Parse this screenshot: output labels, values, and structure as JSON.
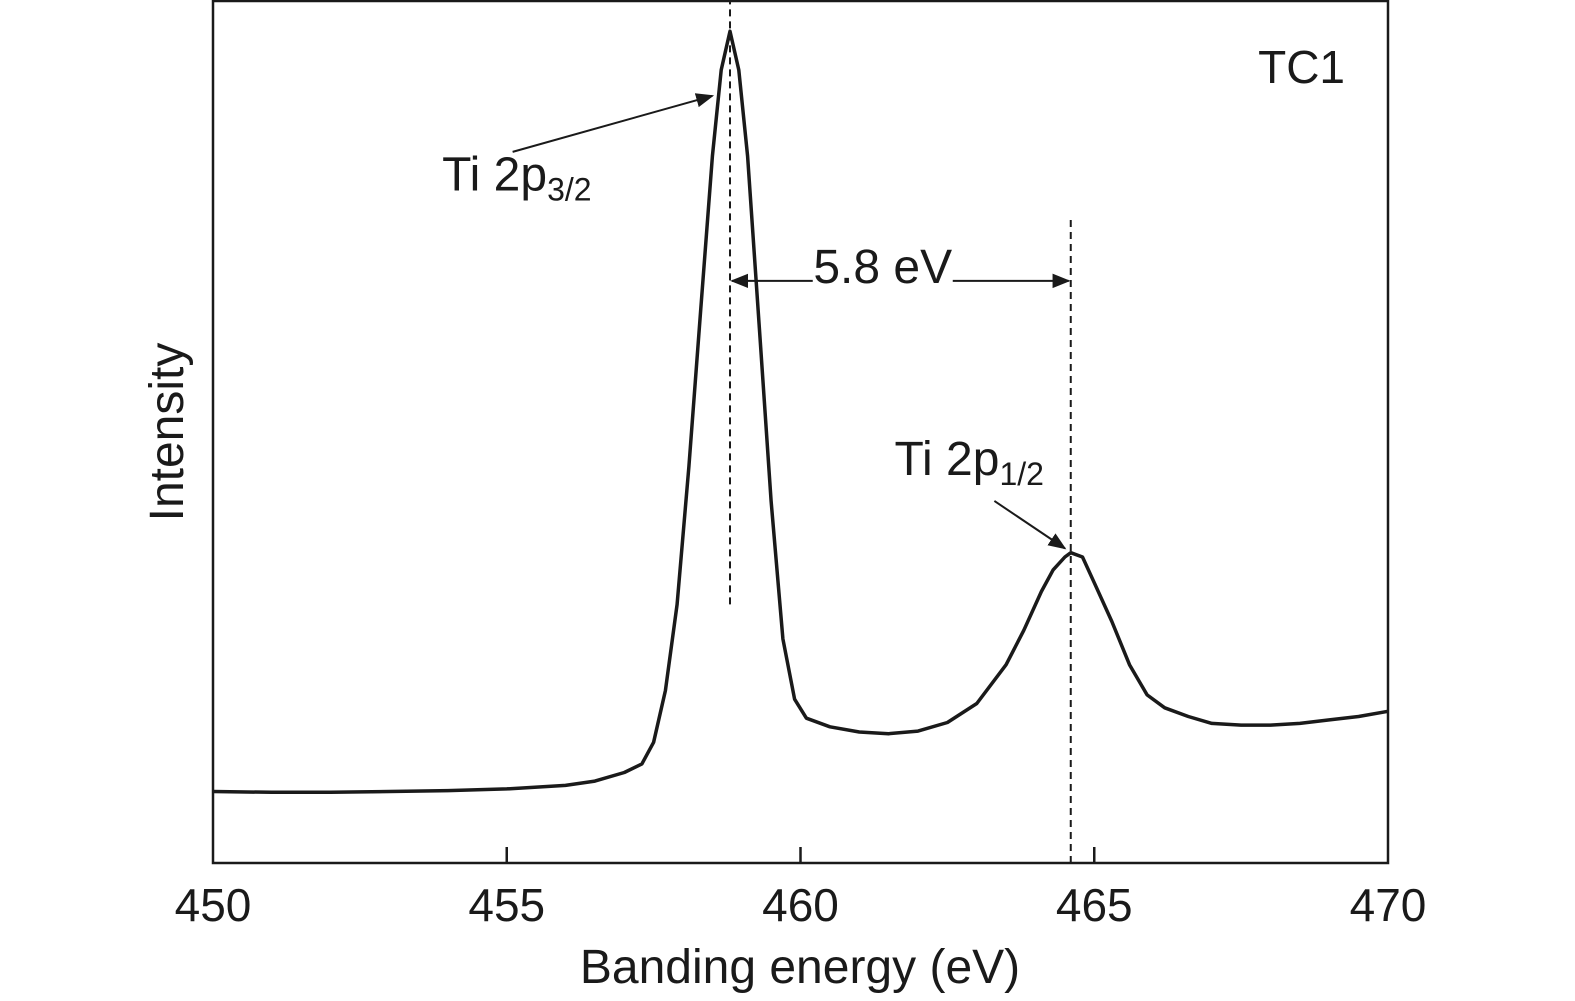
{
  "chart_data": {
    "type": "line",
    "title": "",
    "sample_label": "TC1",
    "xlabel": "Banding energy (eV)",
    "ylabel": "Intensity",
    "xlim": [
      450,
      470
    ],
    "ylim": [
      0,
      100
    ],
    "x_ticks": [
      450,
      455,
      460,
      465,
      470
    ],
    "x_tick_labels": [
      "450",
      "455",
      "460",
      "465",
      "470"
    ],
    "y_ticks_shown": false,
    "grid": false,
    "legend": "none",
    "series": [
      {
        "color": "#1a1a1a",
        "points": [
          [
            450.0,
            8.3
          ],
          [
            451.0,
            8.2
          ],
          [
            452.0,
            8.2
          ],
          [
            453.0,
            8.3
          ],
          [
            454.0,
            8.4
          ],
          [
            455.0,
            8.6
          ],
          [
            456.0,
            9.0
          ],
          [
            456.5,
            9.5
          ],
          [
            457.0,
            10.5
          ],
          [
            457.3,
            11.5
          ],
          [
            457.5,
            14.0
          ],
          [
            457.7,
            20.0
          ],
          [
            457.9,
            30.0
          ],
          [
            458.1,
            46.0
          ],
          [
            458.3,
            64.0
          ],
          [
            458.5,
            82.0
          ],
          [
            458.65,
            92.0
          ],
          [
            458.8,
            96.5
          ],
          [
            458.95,
            92.0
          ],
          [
            459.1,
            82.0
          ],
          [
            459.3,
            62.0
          ],
          [
            459.5,
            42.0
          ],
          [
            459.7,
            26.0
          ],
          [
            459.9,
            19.0
          ],
          [
            460.1,
            16.8
          ],
          [
            460.5,
            15.8
          ],
          [
            461.0,
            15.2
          ],
          [
            461.5,
            15.0
          ],
          [
            462.0,
            15.3
          ],
          [
            462.5,
            16.3
          ],
          [
            463.0,
            18.5
          ],
          [
            463.5,
            23.0
          ],
          [
            463.8,
            27.0
          ],
          [
            464.1,
            31.5
          ],
          [
            464.3,
            34.0
          ],
          [
            464.5,
            35.5
          ],
          [
            464.6,
            36.0
          ],
          [
            464.8,
            35.5
          ],
          [
            465.0,
            32.5
          ],
          [
            465.3,
            28.0
          ],
          [
            465.6,
            23.0
          ],
          [
            465.9,
            19.5
          ],
          [
            466.2,
            18.0
          ],
          [
            466.6,
            17.0
          ],
          [
            467.0,
            16.2
          ],
          [
            467.5,
            16.0
          ],
          [
            468.0,
            16.0
          ],
          [
            468.5,
            16.2
          ],
          [
            469.0,
            16.6
          ],
          [
            469.5,
            17.0
          ],
          [
            470.0,
            17.6
          ]
        ]
      }
    ],
    "reference_lines": [
      {
        "x": 458.8,
        "y_from": 30,
        "y_to": 100,
        "style": "dashed"
      },
      {
        "x": 464.6,
        "y_from": 0,
        "y_to": 75,
        "style": "dashed"
      }
    ],
    "annotations": [
      {
        "id": "peak1",
        "text": "Ti 2p",
        "subscript": "3/2",
        "at_x": 453.9,
        "at_y": 78.0,
        "arrow_from": [
          455.1,
          82.5
        ],
        "arrow_to": [
          458.5,
          89.0
        ]
      },
      {
        "id": "peak2",
        "text": "Ti 2p",
        "subscript": "1/2",
        "at_x": 461.6,
        "at_y": 45.0,
        "arrow_from": [
          463.3,
          42.0
        ],
        "arrow_to": [
          464.5,
          36.5
        ]
      },
      {
        "id": "split",
        "text": "5.8 eV",
        "at_x": 461.4,
        "at_y": 67.3,
        "arrow_left_to": 458.8,
        "arrow_right_to": 464.6
      }
    ]
  }
}
